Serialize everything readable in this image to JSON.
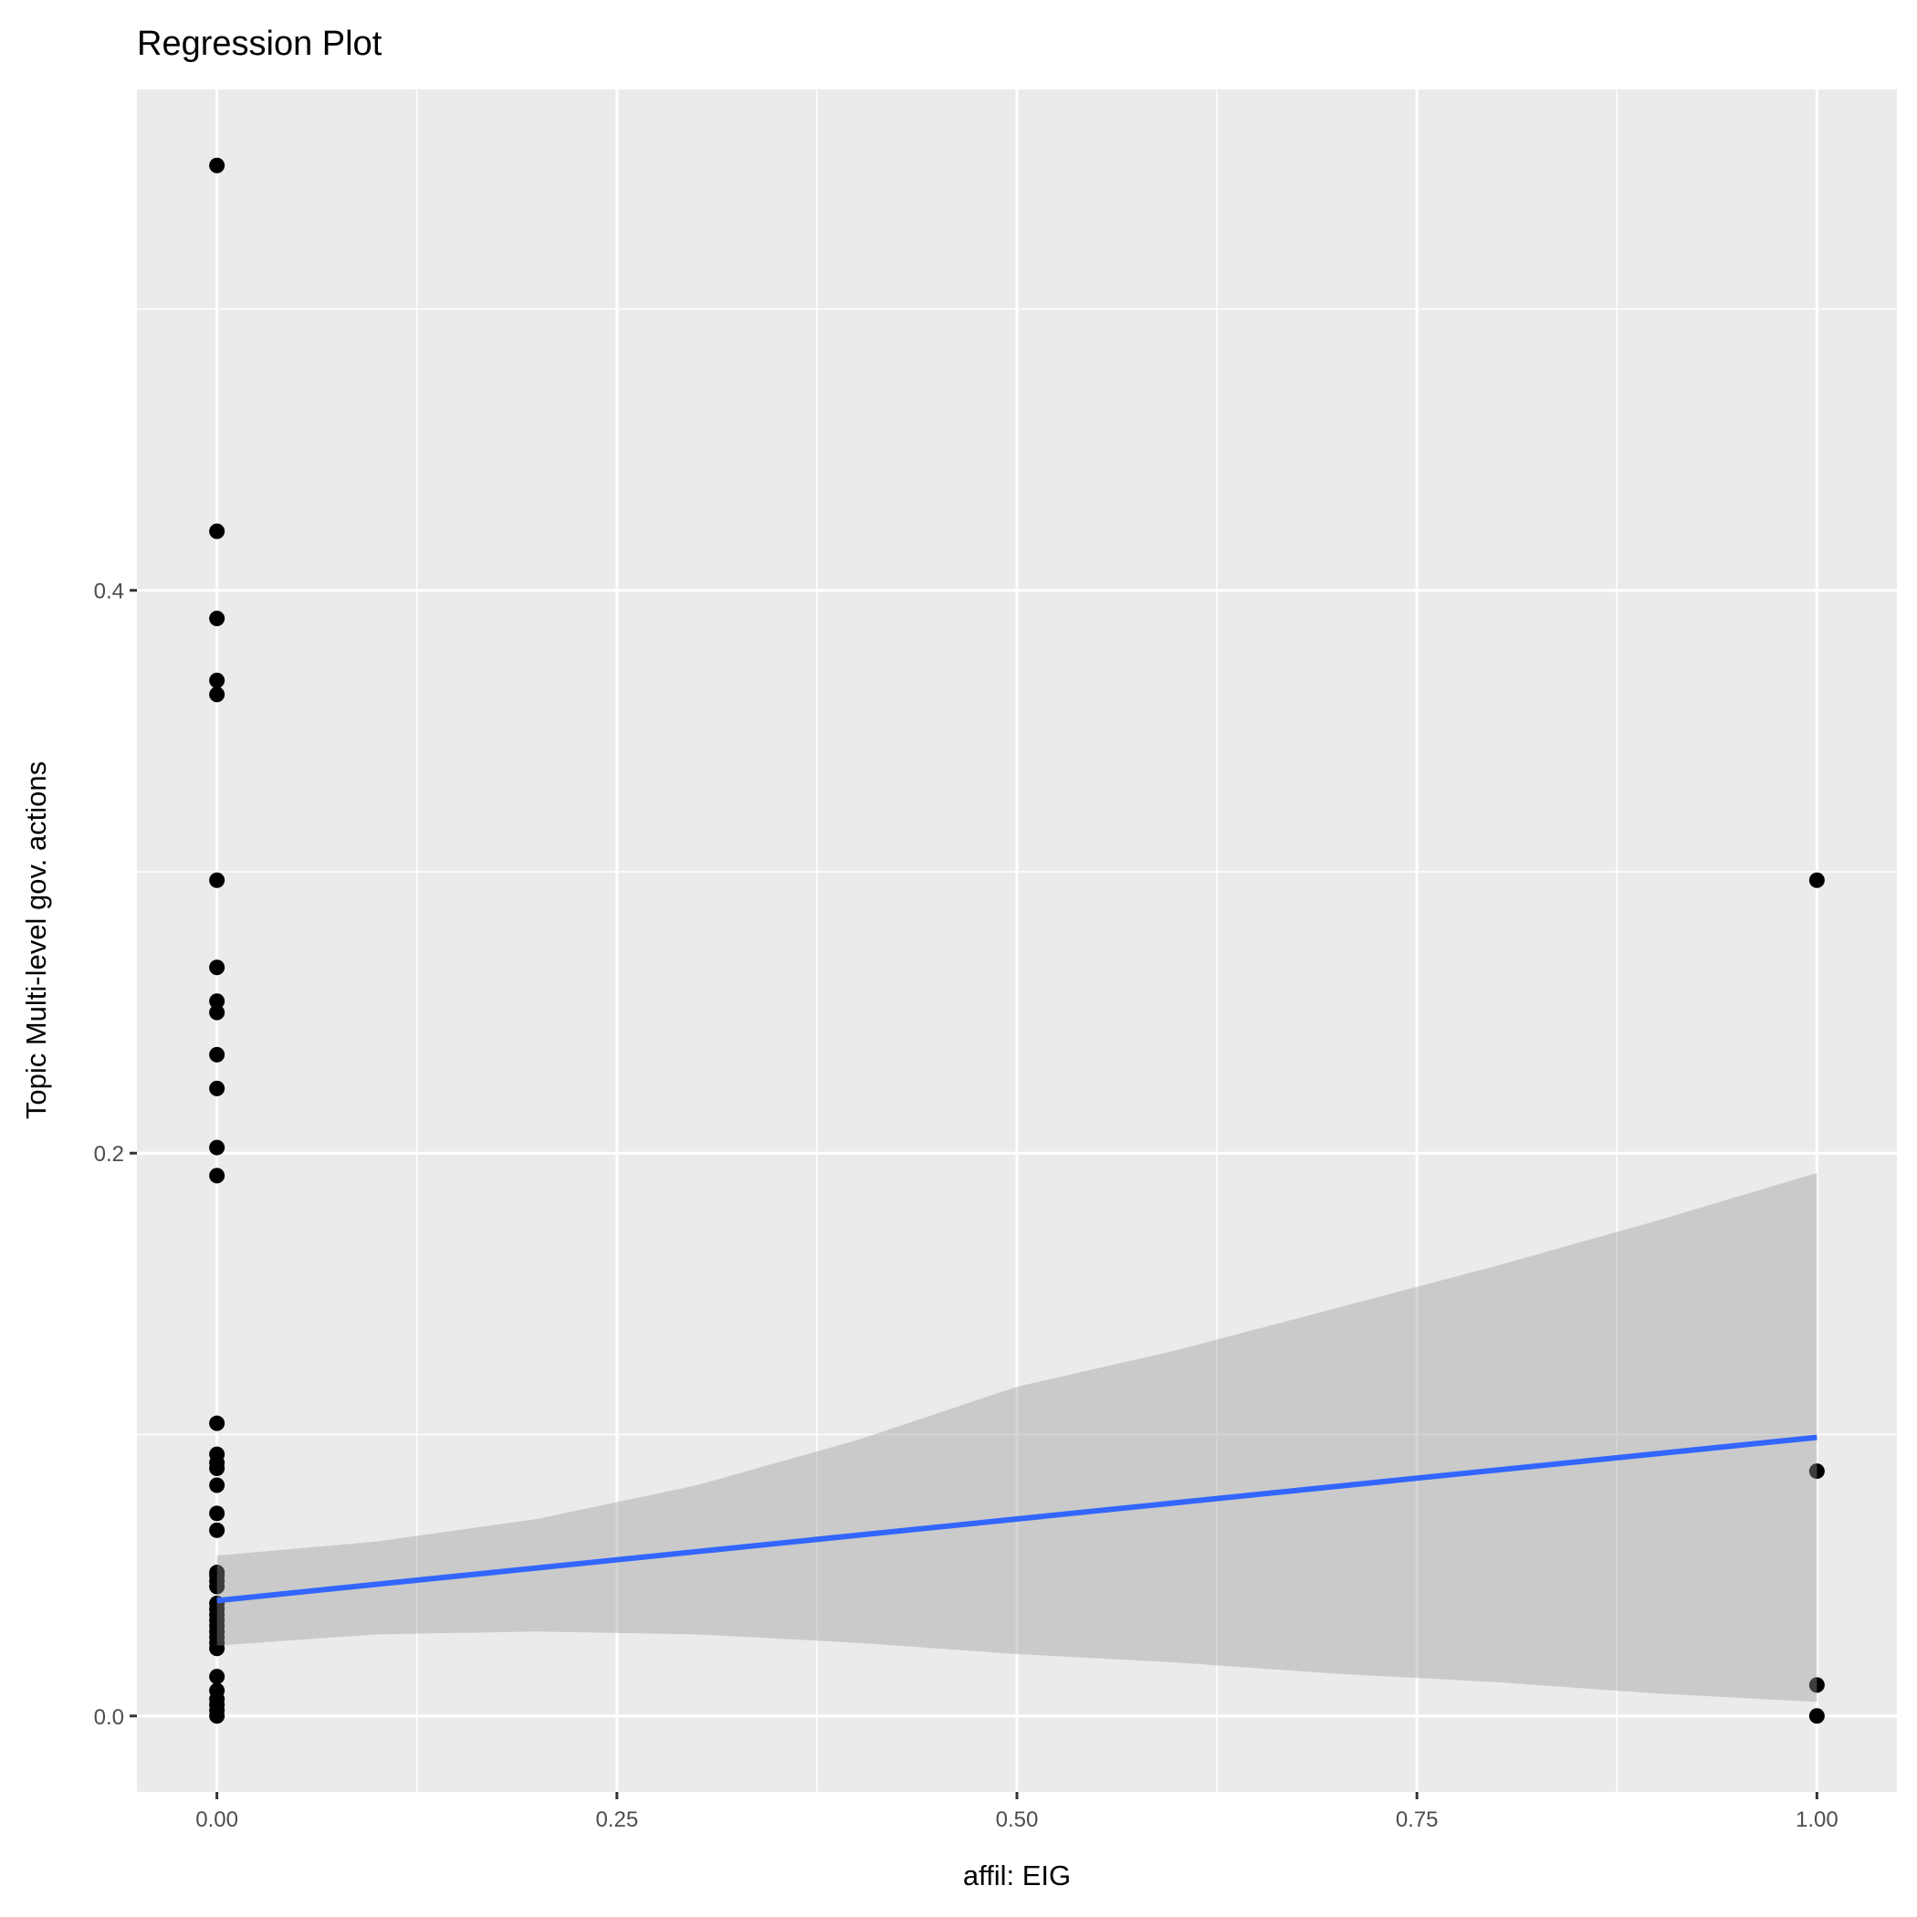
{
  "chart_data": {
    "type": "scatter",
    "title": "Regression Plot",
    "xlabel": "affil: EIG",
    "ylabel": "Topic Multi-level gov. actions",
    "xlim": [
      -0.05,
      1.05
    ],
    "ylim": [
      -0.027,
      0.578
    ],
    "x_ticks": [
      0,
      0.25,
      0.5,
      0.75,
      1.0
    ],
    "x_tick_labels": [
      "0.00",
      "0.25",
      "0.50",
      "0.75",
      "1.00"
    ],
    "y_ticks": [
      0,
      0.2,
      0.4
    ],
    "y_tick_labels": [
      "0.0",
      "0.2",
      "0.4"
    ],
    "grid": true,
    "points": [
      [
        0,
        0.551
      ],
      [
        0,
        0.421
      ],
      [
        0,
        0.39
      ],
      [
        0,
        0.368
      ],
      [
        0,
        0.363
      ],
      [
        0,
        0.297
      ],
      [
        0,
        0.266
      ],
      [
        0,
        0.254
      ],
      [
        0,
        0.25
      ],
      [
        0,
        0.235
      ],
      [
        0,
        0.223
      ],
      [
        0,
        0.202
      ],
      [
        0,
        0.192
      ],
      [
        0,
        0.104
      ],
      [
        0,
        0.093
      ],
      [
        0,
        0.09
      ],
      [
        0,
        0.088
      ],
      [
        0,
        0.082
      ],
      [
        0,
        0.072
      ],
      [
        0,
        0.066
      ],
      [
        0,
        0.051
      ],
      [
        0,
        0.05
      ],
      [
        0,
        0.048
      ],
      [
        0,
        0.046
      ],
      [
        0,
        0.04
      ],
      [
        0,
        0.038
      ],
      [
        0,
        0.036
      ],
      [
        0,
        0.034
      ],
      [
        0,
        0.032
      ],
      [
        0,
        0.03
      ],
      [
        0,
        0.028
      ],
      [
        0,
        0.026
      ],
      [
        0,
        0.024
      ],
      [
        0,
        0.014
      ],
      [
        0,
        0.009
      ],
      [
        0,
        0.006
      ],
      [
        0,
        0.004
      ],
      [
        0,
        0.002
      ],
      [
        0,
        0.0
      ],
      [
        1,
        0.297
      ],
      [
        1,
        0.087
      ],
      [
        1,
        0.011
      ],
      [
        1,
        0.0
      ]
    ],
    "regression_line": {
      "x": [
        0,
        1
      ],
      "y": [
        0.041,
        0.099
      ],
      "color": "#3366ff"
    },
    "confidence_band": {
      "x": [
        0,
        0.1,
        0.2,
        0.3,
        0.4,
        0.5,
        0.6,
        0.7,
        0.8,
        0.9,
        1.0
      ],
      "upper": [
        0.057,
        0.062,
        0.07,
        0.082,
        0.098,
        0.117,
        0.13,
        0.145,
        0.16,
        0.176,
        0.193
      ],
      "lower": [
        0.025,
        0.029,
        0.03,
        0.029,
        0.026,
        0.022,
        0.019,
        0.015,
        0.012,
        0.008,
        0.005
      ],
      "color": "#999999"
    }
  }
}
